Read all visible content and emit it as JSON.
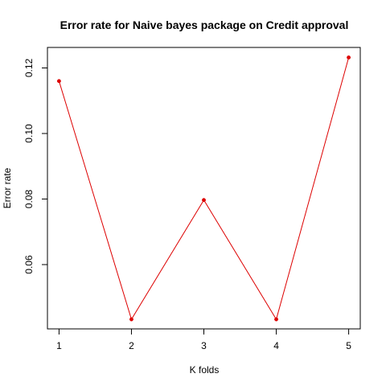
{
  "chart_data": {
    "type": "line",
    "title": "Error rate for Naive bayes package on Credit approval",
    "xlabel": "K folds",
    "ylabel": "Error rate",
    "x": [
      1,
      2,
      3,
      4,
      5
    ],
    "series": [
      {
        "values": [
          0.116,
          0.0433,
          0.0797,
          0.0433,
          0.1232
        ],
        "color": "#dd0000"
      }
    ],
    "xticks": [
      "1",
      "2",
      "3",
      "4",
      "5"
    ],
    "yticks": [
      "0.06",
      "0.08",
      "0.10",
      "0.12"
    ],
    "xlim": [
      0.84,
      5.16
    ],
    "ylim": [
      0.04038,
      0.12626
    ],
    "grid": false,
    "marker": "filled-circle"
  }
}
